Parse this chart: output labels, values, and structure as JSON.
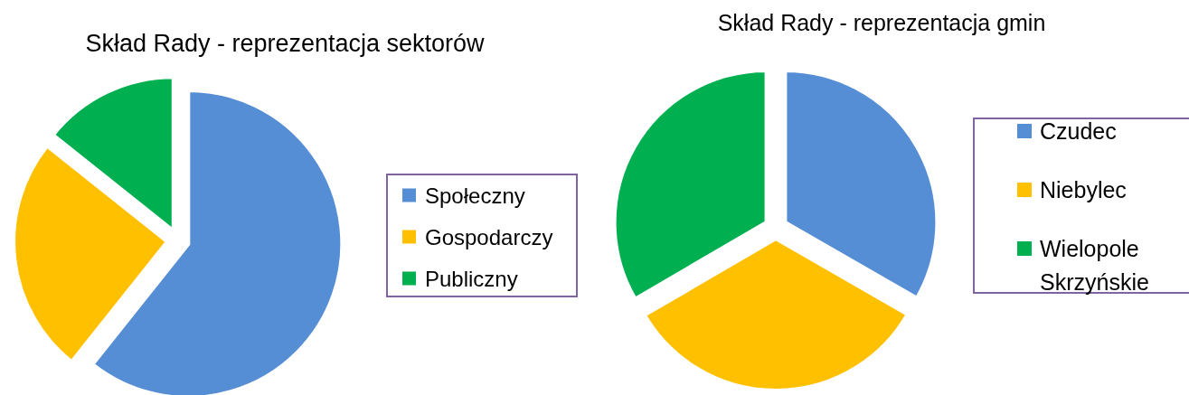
{
  "chart_data": [
    {
      "type": "pie",
      "title": "Skład Rady - reprezentacja sektorów",
      "categories": [
        "Społeczny",
        "Gospodarczy",
        "Publiczny"
      ],
      "values": [
        60.7,
        25,
        14.3
      ],
      "colors": [
        "#558ed5",
        "#ffc000",
        "#00b050"
      ],
      "legend": "right"
    },
    {
      "type": "pie",
      "title": "Skład Rady - reprezentacja gmin",
      "categories": [
        "Czudec",
        "Niebylec",
        "Wielopole Skrzyńskie"
      ],
      "values": [
        33.3,
        33.3,
        33.4
      ],
      "colors": [
        "#558ed5",
        "#ffc000",
        "#00b050"
      ],
      "legend": "right"
    }
  ]
}
